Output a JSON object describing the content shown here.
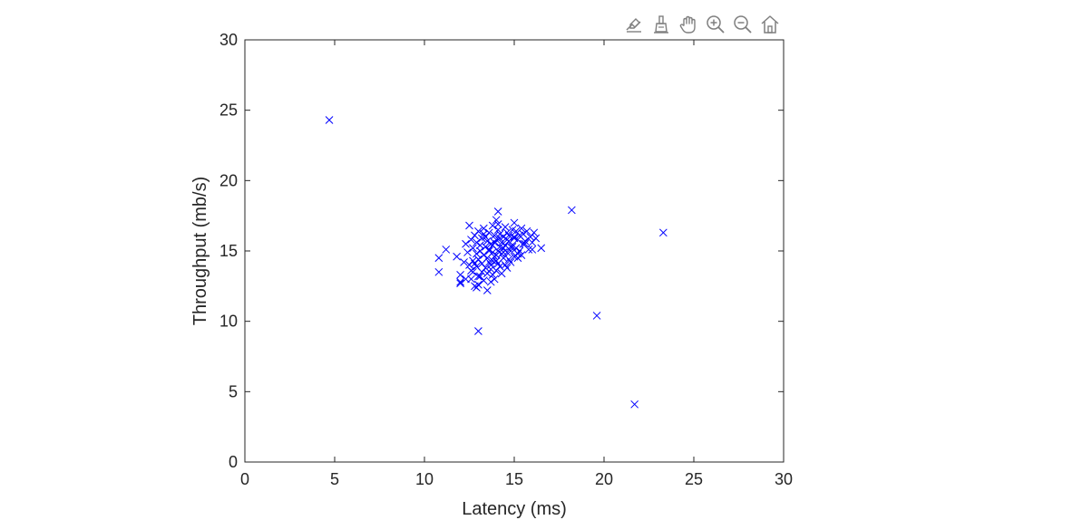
{
  "toolbar": {
    "tools": [
      {
        "name": "data-tips-icon"
      },
      {
        "name": "brush-icon"
      },
      {
        "name": "pan-icon"
      },
      {
        "name": "zoom-in-icon"
      },
      {
        "name": "zoom-out-icon"
      },
      {
        "name": "home-icon"
      }
    ],
    "icon_color": "#7f7f7f"
  },
  "chart_data": {
    "type": "scatter",
    "marker": "x",
    "color": "#0000ff",
    "xlabel": "Latency (ms)",
    "ylabel": "Throughput (mb/s)",
    "xlim": [
      0,
      30
    ],
    "ylim": [
      0,
      30
    ],
    "xticks": [
      "0",
      "5",
      "10",
      "15",
      "20",
      "25",
      "30"
    ],
    "yticks": [
      "0",
      "5",
      "10",
      "15",
      "20",
      "25",
      "30"
    ],
    "grid": false,
    "series": [
      {
        "x": [
          4.7,
          10.8,
          10.8,
          11.2,
          11.8,
          12.0,
          12.0,
          12.2,
          12.3,
          12.4,
          12.5,
          12.5,
          12.6,
          12.6,
          12.7,
          12.7,
          12.8,
          12.8,
          12.9,
          12.9,
          12.9,
          13.0,
          13.0,
          13.0,
          13.1,
          13.1,
          13.2,
          13.2,
          13.2,
          13.3,
          13.3,
          13.3,
          13.4,
          13.4,
          13.4,
          13.5,
          13.5,
          13.5,
          13.5,
          13.6,
          13.6,
          13.6,
          13.7,
          13.7,
          13.7,
          13.8,
          13.8,
          13.8,
          13.8,
          13.9,
          13.9,
          13.9,
          14.0,
          14.0,
          14.0,
          14.0,
          14.1,
          14.1,
          14.1,
          14.1,
          14.2,
          14.2,
          14.2,
          14.3,
          14.3,
          14.3,
          14.4,
          14.4,
          14.4,
          14.5,
          14.5,
          14.5,
          14.6,
          14.6,
          14.6,
          14.7,
          14.7,
          14.7,
          14.8,
          14.8,
          14.9,
          14.9,
          15.0,
          15.0,
          15.0,
          15.1,
          15.1,
          15.2,
          15.2,
          15.3,
          15.3,
          15.4,
          15.5,
          15.5,
          15.6,
          15.7,
          15.8,
          15.9,
          16.0,
          16.1,
          16.2,
          16.5,
          12.3,
          12.7,
          13.0,
          13.6,
          14.0,
          14.2,
          14.8,
          15.2,
          12.8,
          13.3,
          13.9,
          14.4,
          15.0,
          15.6,
          13.1,
          13.8,
          14.6,
          12.9,
          13.0,
          13.7,
          12.0,
          12.6,
          14.1,
          15.4,
          16.0,
          18.2,
          23.3,
          19.6,
          21.7,
          13.0
        ],
        "y": [
          24.3,
          14.5,
          13.5,
          15.1,
          14.6,
          13.3,
          12.8,
          14.2,
          15.5,
          14.9,
          16.8,
          14.0,
          15.8,
          13.6,
          14.3,
          15.2,
          12.5,
          16.1,
          14.8,
          13.9,
          15.6,
          12.6,
          14.4,
          16.4,
          13.2,
          15.0,
          14.1,
          15.9,
          13.5,
          16.6,
          14.7,
          12.9,
          15.3,
          13.8,
          16.0,
          12.2,
          14.5,
          15.7,
          13.4,
          16.3,
          14.2,
          15.1,
          13.7,
          15.5,
          14.0,
          16.8,
          14.9,
          13.3,
          15.4,
          16.1,
          14.6,
          13.0,
          15.8,
          14.3,
          17.2,
          13.6,
          15.0,
          14.1,
          16.5,
          17.8,
          15.3,
          13.9,
          16.2,
          14.8,
          15.6,
          13.4,
          16.0,
          14.5,
          15.2,
          16.7,
          14.0,
          15.4,
          13.8,
          16.3,
          14.9,
          15.7,
          14.4,
          16.1,
          15.0,
          14.2,
          16.5,
          15.3,
          14.6,
          15.9,
          17.0,
          15.2,
          16.4,
          14.8,
          15.8,
          16.1,
          15.0,
          16.6,
          15.5,
          16.2,
          15.7,
          16.4,
          15.1,
          16.0,
          15.6,
          16.3,
          15.9,
          15.2,
          13.0,
          13.5,
          14.4,
          15.0,
          14.7,
          15.9,
          15.3,
          14.5,
          14.1,
          16.2,
          15.6,
          14.9,
          16.0,
          15.5,
          15.4,
          14.3,
          15.8,
          12.4,
          13.2,
          12.8,
          12.7,
          13.0,
          16.9,
          14.7,
          15.1,
          17.9,
          16.3,
          10.4,
          4.1,
          9.3
        ]
      }
    ]
  }
}
